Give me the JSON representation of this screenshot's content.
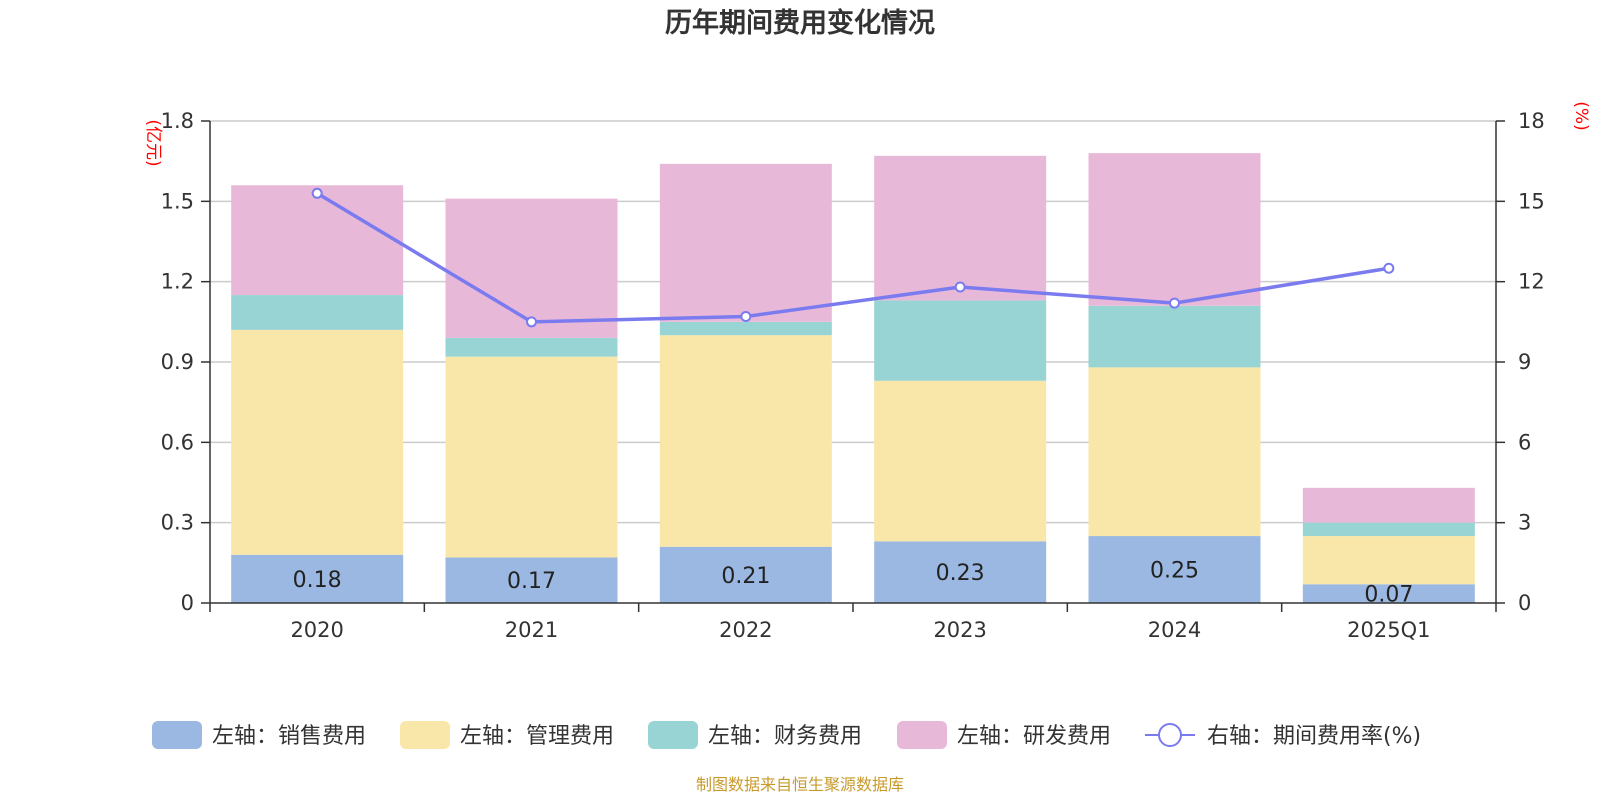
{
  "chart_data": {
    "type": "bar",
    "stacked": true,
    "title": "历年期间费用变化情况",
    "left_unit": "(亿元)",
    "right_unit": "(%)",
    "categories": [
      "2020",
      "2021",
      "2022",
      "2023",
      "2024",
      "2025Q1"
    ],
    "left_axis": {
      "range": [
        0,
        1.8
      ],
      "ticks": [
        "0",
        "0.3",
        "0.6",
        "0.9",
        "1.2",
        "1.5",
        "1.8"
      ],
      "tick_values": [
        0,
        0.3,
        0.6,
        0.9,
        1.2,
        1.5,
        1.8
      ]
    },
    "right_axis": {
      "range": [
        0,
        18
      ],
      "ticks": [
        "0",
        "3",
        "6",
        "9",
        "12",
        "15",
        "18"
      ],
      "tick_values": [
        0,
        3,
        6,
        9,
        12,
        15,
        18
      ]
    },
    "grid": true,
    "legend_position": "bottom",
    "series": [
      {
        "name": "左轴：销售费用",
        "axis": "left",
        "color": "#9bb8e2",
        "values": [
          0.18,
          0.17,
          0.21,
          0.23,
          0.25,
          0.07
        ],
        "labels": [
          "0.18",
          "0.17",
          "0.21",
          "0.23",
          "0.25",
          "0.07"
        ]
      },
      {
        "name": "左轴：管理费用",
        "axis": "left",
        "color": "#f8e7a8",
        "values": [
          0.84,
          0.75,
          0.79,
          0.6,
          0.63,
          0.18
        ]
      },
      {
        "name": "左轴：财务费用",
        "axis": "left",
        "color": "#98d4d4",
        "values": [
          0.13,
          0.07,
          0.05,
          0.3,
          0.23,
          0.05
        ]
      },
      {
        "name": "左轴：研发费用",
        "axis": "left",
        "color": "#e8b8d9",
        "values": [
          0.41,
          0.52,
          0.59,
          0.54,
          0.57,
          0.13
        ]
      },
      {
        "name": "右轴：期间费用率(%)",
        "axis": "right",
        "type": "line",
        "color": "#7b7bf0",
        "values": [
          15.3,
          10.5,
          10.7,
          11.8,
          11.2,
          12.5
        ]
      }
    ],
    "source": "制图数据来自恒生聚源数据库"
  }
}
